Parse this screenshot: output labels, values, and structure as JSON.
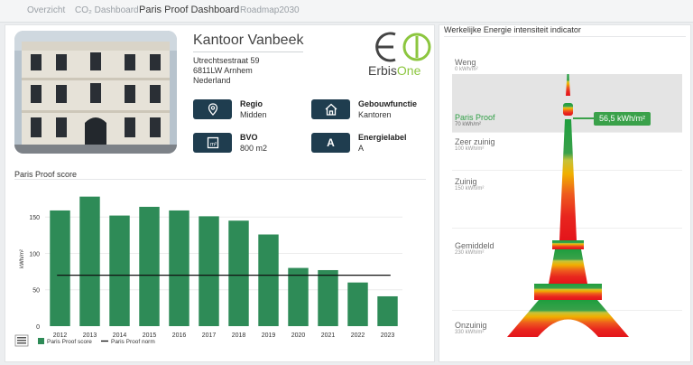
{
  "tabs": [
    {
      "label": "Overzicht"
    },
    {
      "label": "CO₂ Dashboard"
    },
    {
      "label": "Paris Proof Dashboard"
    },
    {
      "label": "Roadmap2030"
    }
  ],
  "building": {
    "name": "Kantoor Vanbeek",
    "address": [
      "Utrechtsestraat 59",
      "6811LW Arnhem",
      "Nederland"
    ]
  },
  "logo": {
    "text_a": "Erbis",
    "text_b": "One"
  },
  "info": [
    {
      "icon": "location-pin-icon",
      "label": "Regio",
      "value": "Midden"
    },
    {
      "icon": "house-icon",
      "label": "Gebouwfunctie",
      "value": "Kantoren"
    },
    {
      "icon": "area-m2-icon",
      "label": "BVO",
      "value": "800 m2"
    },
    {
      "icon": "energy-label-icon",
      "label": "Energielabel",
      "value": "A",
      "badge": "A"
    }
  ],
  "score_title": "Paris Proof score",
  "chart_data": {
    "type": "bar",
    "ylabel": "kWh/m²",
    "ylim": [
      0,
      185
    ],
    "yticks": [
      0,
      50,
      100,
      150
    ],
    "categories": [
      "2012",
      "2013",
      "2014",
      "2015",
      "2016",
      "2017",
      "2018",
      "2019",
      "2020",
      "2021",
      "2022",
      "2023"
    ],
    "series": [
      {
        "name": "Paris Proof score",
        "values": [
          159,
          178,
          152,
          164,
          159,
          151,
          145,
          126,
          80,
          77,
          60,
          41
        ],
        "color": "#2e8b57"
      }
    ],
    "norm": {
      "name": "Paris Proof norm",
      "value": 70,
      "color": "#111111"
    },
    "legend_position": "bottom-left"
  },
  "indicator": {
    "title": "Werkelijke Energie intensiteit indicator",
    "current_value": "56,5 kWh/m²",
    "levels": [
      {
        "name": "Weng",
        "value": "0 kWh/m²"
      },
      {
        "name": "Paris Proof",
        "value": "70 kWh/m²"
      },
      {
        "name": "Zeer zuinig",
        "value": "100 kWh/m²"
      },
      {
        "name": "Zuinig",
        "value": "150 kWh/m²"
      },
      {
        "name": "Gemiddeld",
        "value": "230 kWh/m²"
      },
      {
        "name": "Onzuinig",
        "value": "330 kWh/m²"
      }
    ],
    "accent_color": "#3aa14a"
  }
}
